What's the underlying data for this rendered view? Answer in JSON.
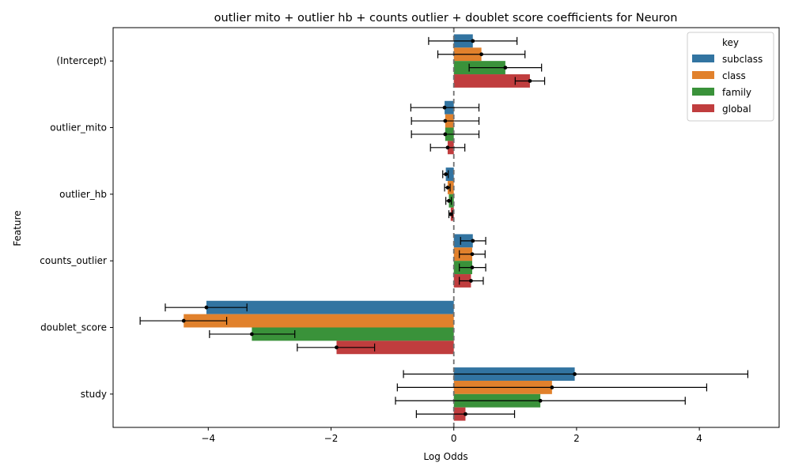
{
  "chart_data": {
    "type": "bar",
    "orientation": "horizontal",
    "title": "outlier mito + outlier hb + counts outlier + doublet score coefficients for Neuron",
    "xlabel": "Log Odds",
    "ylabel": "Feature",
    "categories": [
      "(Intercept)",
      "outlier_mito",
      "outlier_hb",
      "counts_outlier",
      "doublet_score",
      "study"
    ],
    "xlim": [
      -5.55,
      5.3
    ],
    "xticks": [
      -4,
      -2,
      0,
      2,
      4
    ],
    "xtick_labels": [
      "−4",
      "−2",
      "0",
      "2",
      "4"
    ],
    "reference_line": 0,
    "legend": {
      "title": "key",
      "placement": "top-right"
    },
    "series": [
      {
        "name": "subclass",
        "color": "#3274a1",
        "values": [
          0.31,
          -0.15,
          -0.13,
          0.31,
          -4.03,
          1.97
        ],
        "ci_low": [
          -0.41,
          -0.7,
          -0.18,
          0.11,
          -4.7,
          -0.82
        ],
        "ci_high": [
          1.03,
          0.41,
          -0.09,
          0.52,
          -3.37,
          4.79
        ]
      },
      {
        "name": "class",
        "color": "#e1812c",
        "values": [
          0.45,
          -0.14,
          -0.1,
          0.3,
          -4.4,
          1.6
        ],
        "ci_low": [
          -0.26,
          -0.69,
          -0.15,
          0.09,
          -5.11,
          -0.92
        ],
        "ci_high": [
          1.16,
          0.41,
          -0.06,
          0.51,
          -3.7,
          4.12
        ]
      },
      {
        "name": "family",
        "color": "#3a923a",
        "values": [
          0.84,
          -0.14,
          -0.08,
          0.3,
          -3.29,
          1.41
        ],
        "ci_low": [
          0.25,
          -0.69,
          -0.13,
          0.09,
          -3.98,
          -0.95
        ],
        "ci_high": [
          1.43,
          0.41,
          -0.04,
          0.52,
          -2.59,
          3.77
        ]
      },
      {
        "name": "global",
        "color": "#c03d3e",
        "values": [
          1.24,
          -0.1,
          -0.05,
          0.28,
          -1.91,
          0.19
        ],
        "ci_low": [
          1.0,
          -0.38,
          -0.08,
          0.09,
          -2.55,
          -0.61
        ],
        "ci_high": [
          1.48,
          0.18,
          -0.02,
          0.48,
          -1.29,
          0.99
        ]
      }
    ]
  }
}
